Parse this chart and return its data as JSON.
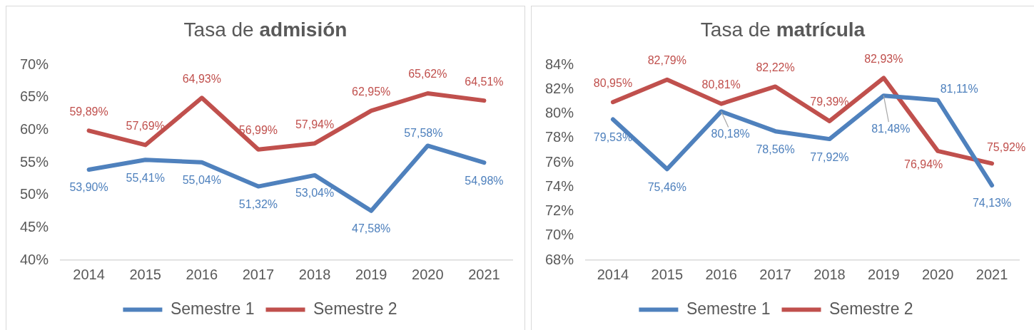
{
  "chart_data": [
    {
      "type": "line",
      "title": "Tasa de admisión",
      "categories": [
        "2014",
        "2015",
        "2016",
        "2017",
        "2018",
        "2019",
        "2020",
        "2021"
      ],
      "series": [
        {
          "name": "Semestre 1",
          "color": "#4f81bd",
          "values": [
            53.9,
            55.41,
            55.04,
            51.32,
            53.04,
            47.58,
            57.58,
            54.98
          ],
          "value_labels": [
            "53,90%",
            "55,41%",
            "55,04%",
            "51,32%",
            "53,04%",
            "47,58%",
            "57,58%",
            "54,98%"
          ]
        },
        {
          "name": "Semestre 2",
          "color": "#c0504d",
          "values": [
            59.89,
            57.69,
            64.93,
            56.99,
            57.94,
            62.95,
            65.62,
            64.51
          ],
          "value_labels": [
            "59,89%",
            "57,69%",
            "64,93%",
            "56,99%",
            "57,94%",
            "62,95%",
            "65,62%",
            "64,51%"
          ]
        }
      ],
      "ylim": [
        40,
        70
      ],
      "yticks": [
        {
          "value": 40,
          "label": "40%"
        },
        {
          "value": 45,
          "label": "45%"
        },
        {
          "value": 50,
          "label": "50%"
        },
        {
          "value": 55,
          "label": "55%"
        },
        {
          "value": 60,
          "label": "60%"
        },
        {
          "value": 65,
          "label": "65%"
        },
        {
          "value": 70,
          "label": "70%"
        }
      ],
      "grid": false,
      "legend": "bottom",
      "marker": "none",
      "line_style": "solid"
    },
    {
      "type": "line",
      "title": "Tasa de matrícula",
      "categories": [
        "2014",
        "2015",
        "2016",
        "2017",
        "2018",
        "2019",
        "2020",
        "2021"
      ],
      "series": [
        {
          "name": "Semestre 1",
          "color": "#4f81bd",
          "values": [
            79.53,
            75.46,
            80.18,
            78.56,
            77.92,
            81.48,
            81.11,
            74.13
          ],
          "value_labels": [
            "79,53%",
            "75,46%",
            "80,18%",
            "78,56%",
            "77,92%",
            "81,48%",
            "81,11%",
            "74,13%"
          ]
        },
        {
          "name": "Semestre 2",
          "color": "#c0504d",
          "values": [
            80.95,
            82.79,
            80.81,
            82.22,
            79.39,
            82.93,
            76.94,
            75.92
          ],
          "value_labels": [
            "80,95%",
            "82,79%",
            "80,81%",
            "82,22%",
            "79,39%",
            "82,93%",
            "76,94%",
            "75,92%"
          ]
        }
      ],
      "ylim": [
        68,
        84
      ],
      "yticks": [
        {
          "value": 68,
          "label": "68%"
        },
        {
          "value": 70,
          "label": "70%"
        },
        {
          "value": 72,
          "label": "72%"
        },
        {
          "value": 74,
          "label": "74%"
        },
        {
          "value": 76,
          "label": "76%"
        },
        {
          "value": 78,
          "label": "78%"
        },
        {
          "value": 80,
          "label": "80%"
        },
        {
          "value": 82,
          "label": "82%"
        },
        {
          "value": 84,
          "label": "84%"
        }
      ],
      "grid": false,
      "legend": "bottom",
      "marker": "none",
      "line_style": "solid"
    }
  ]
}
